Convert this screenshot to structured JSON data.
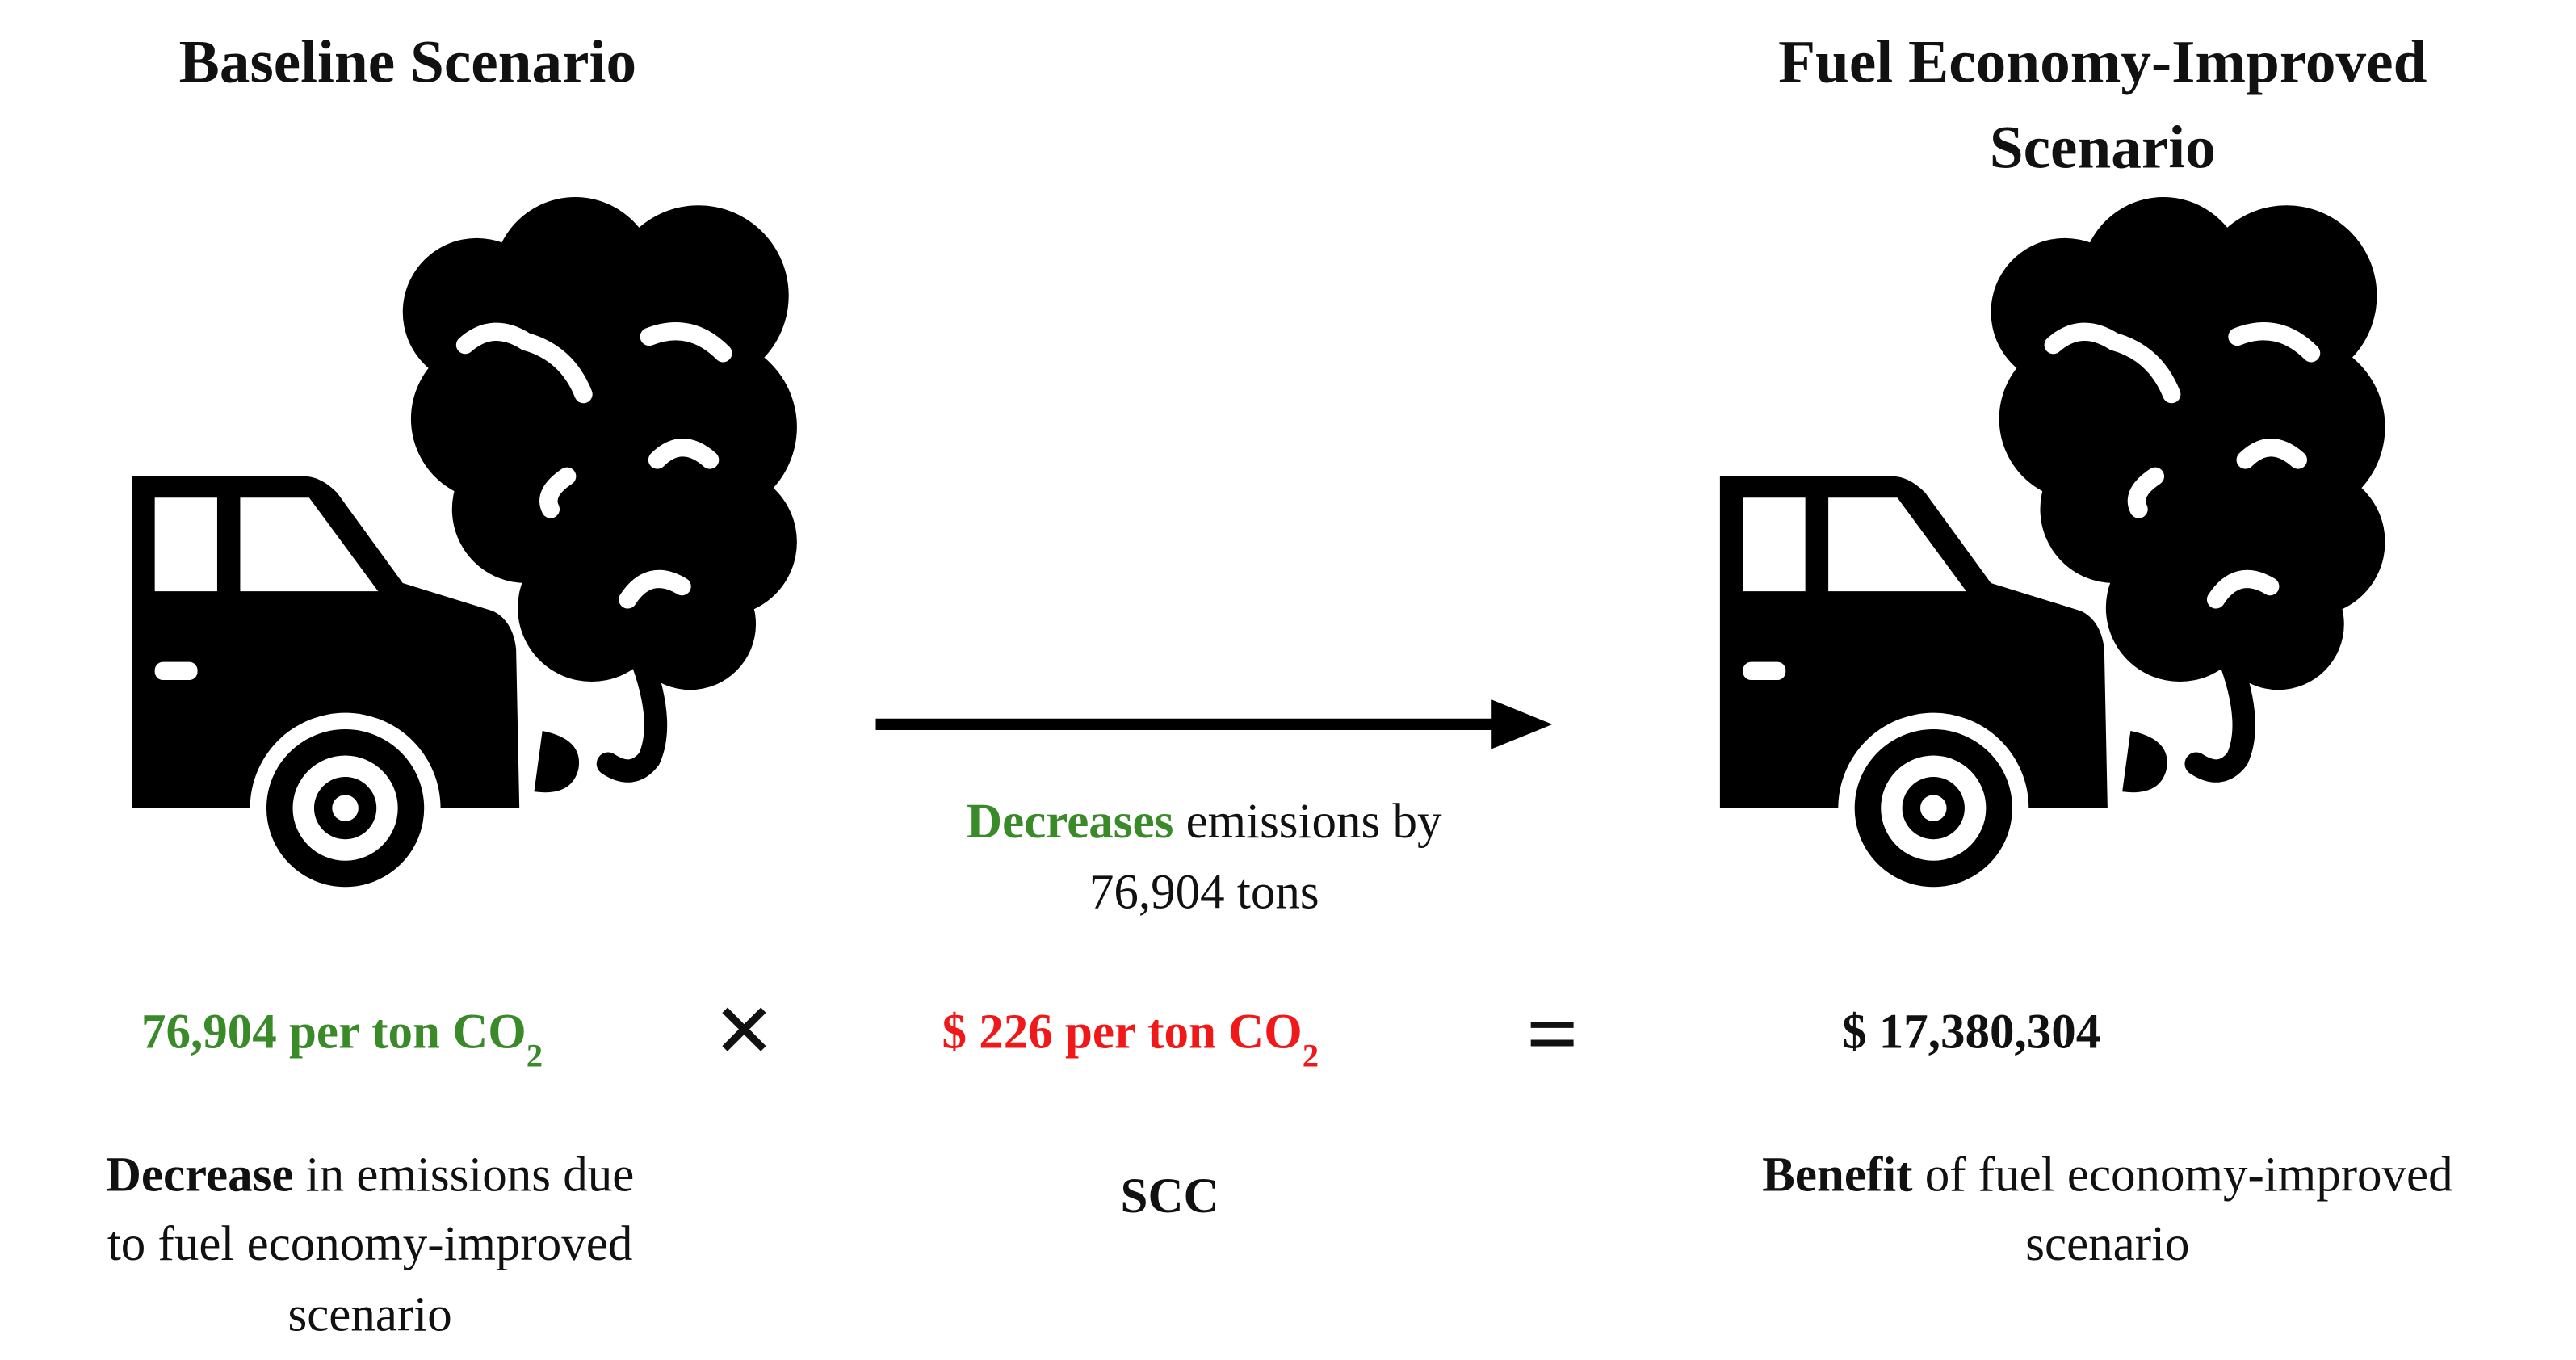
{
  "baseline": {
    "title": "Baseline Scenario"
  },
  "improved": {
    "title_lines": [
      "Fuel Economy-Improved",
      "Scenario"
    ]
  },
  "arrow_label": {
    "highlight": "Decreases",
    "lines": [
      "emissions by",
      "76,904 tons"
    ]
  },
  "equation": {
    "term1": {
      "value": "76,904",
      "unit": "per ton CO",
      "subscript": "2"
    },
    "times": "×",
    "term2": {
      "value": "$ 226",
      "unit": "per ton CO",
      "subscript": "2"
    },
    "equals": "=",
    "result": "$ 17,380,304"
  },
  "captions": {
    "term1": {
      "highlight": "Decrease",
      "lines": [
        "in emissions due",
        "to fuel economy-improved",
        "scenario"
      ]
    },
    "term2": {
      "highlight": "SCC"
    },
    "result": {
      "highlight": "Benefit",
      "lines": [
        "of fuel economy-improved",
        "scenario"
      ]
    }
  }
}
